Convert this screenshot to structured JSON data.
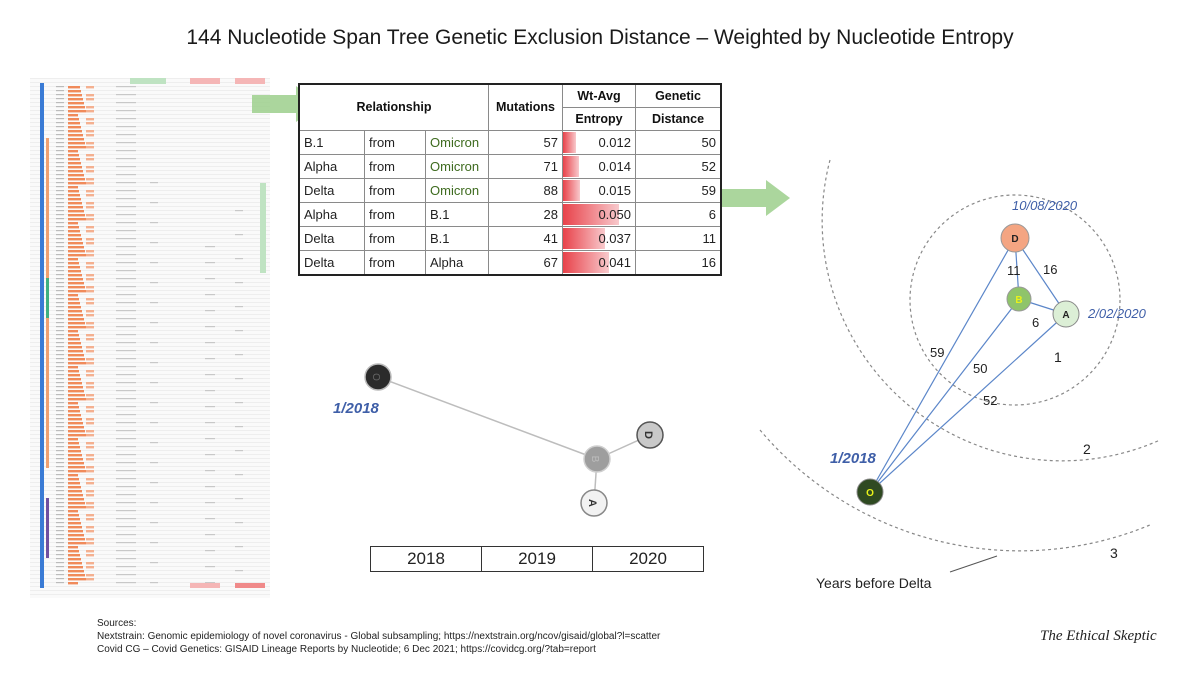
{
  "title": "144 Nucleotide Span Tree Genetic Exclusion Distance – Weighted by Nucleotide Entropy",
  "colors": {
    "arrow": "#9ccf8c",
    "entropy_bar": "#e8424a",
    "omicron_text": "#3e6b1f",
    "node_delta": "#f4a582",
    "node_b1": "#8fc46a",
    "node_alpha": "#dcefd6",
    "node_omicron": "#2f4a22",
    "edge_line": "#5b86c9",
    "date_text": "#3f5fa8"
  },
  "table": {
    "headers": {
      "relationship": "Relationship",
      "mutations": "Mutations",
      "entropy_line1": "Wt-Avg",
      "entropy_line2": "Entropy",
      "distance_line1": "Genetic",
      "distance_line2": "Distance"
    },
    "rows": [
      {
        "lineage": "B.1",
        "from": "from",
        "source": "Omicron",
        "mutations": "57",
        "entropy": "0.012",
        "entropy_value": 0.012,
        "distance": "50"
      },
      {
        "lineage": "Alpha",
        "from": "from",
        "source": "Omicron",
        "mutations": "71",
        "entropy": "0.014",
        "entropy_value": 0.014,
        "distance": "52"
      },
      {
        "lineage": "Delta",
        "from": "from",
        "source": "Omicron",
        "mutations": "88",
        "entropy": "0.015",
        "entropy_value": 0.015,
        "distance": "59"
      },
      {
        "lineage": "Alpha",
        "from": "from",
        "source": "B.1",
        "mutations": "28",
        "entropy": "0.050",
        "entropy_value": 0.05,
        "distance": "6"
      },
      {
        "lineage": "Delta",
        "from": "from",
        "source": "B.1",
        "mutations": "41",
        "entropy": "0.037",
        "entropy_value": 0.037,
        "distance": "11"
      },
      {
        "lineage": "Delta",
        "from": "from",
        "source": "Alpha",
        "mutations": "67",
        "entropy": "0.041",
        "entropy_value": 0.041,
        "distance": "16"
      }
    ]
  },
  "middle_tree": {
    "date_label": "1/2018",
    "nodes": {
      "o": "O",
      "b": "B",
      "d": "D",
      "a": "A"
    }
  },
  "years": [
    "2018",
    "2019",
    "2020"
  ],
  "right_tree": {
    "nodes": {
      "d": "D",
      "b": "B",
      "a": "A",
      "o": "O"
    },
    "date_d": "10/08/2020",
    "date_a": "2/02/2020",
    "date_o": "1/2018",
    "edges": {
      "db": "11",
      "da": "16",
      "ba": "6",
      "od": "59",
      "ob": "50",
      "oa": "52"
    },
    "rings": [
      "1",
      "2",
      "3"
    ],
    "rings_caption": "Years before Delta"
  },
  "sources": {
    "heading": "Sources:",
    "line1": "Nextstrain: Genomic epidemiology of novel coronavirus - Global subsampling; https://nextstrain.org/ncov/gisaid/global?l=scatter",
    "line2": "Covid CG – Covid Genetics: GISAID Lineage Reports by Nucleotide; 6 Dec 2021; https://covidcg.org/?tab=report"
  },
  "signature": "The Ethical Skeptic"
}
